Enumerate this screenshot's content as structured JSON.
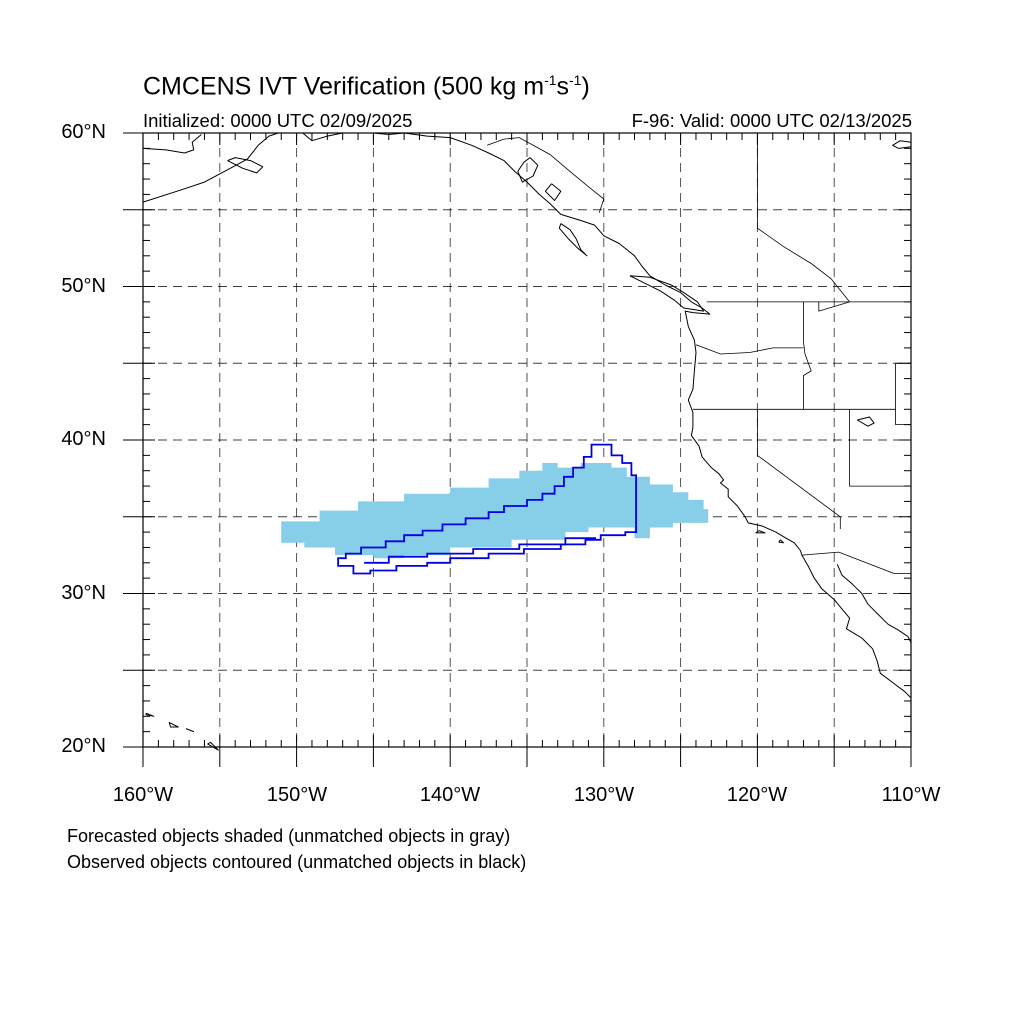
{
  "title": {
    "main": "CMCENS IVT Verification (500 kg m",
    "exp1": "-1",
    "unit_mid": "s",
    "exp2": "-1",
    "close": ")"
  },
  "initialized": "Initialized: 0000 UTC 02/09/2025",
  "valid": "F-96: Valid: 0000 UTC 02/13/2025",
  "latitude_labels": [
    "60°N",
    "50°N",
    "40°N",
    "30°N",
    "20°N"
  ],
  "longitude_labels": [
    "160°W",
    "150°W",
    "140°W",
    "130°W",
    "120°W",
    "110°W"
  ],
  "captions": [
    "Forecasted objects shaded (unmatched objects in gray)",
    "Observed objects contoured (unmatched objects in black)"
  ],
  "colors": {
    "forecast_fill": "#87cee8",
    "observed_contour": "#0000e6",
    "coastline": "#000000",
    "grid": "#000000"
  },
  "extent": {
    "lon": [
      -160,
      -110
    ],
    "lat": [
      20,
      60
    ]
  },
  "forecast_object_lonlat": [
    [
      -151,
      33.3
    ],
    [
      -151,
      34.7
    ],
    [
      -148.5,
      34.7
    ],
    [
      -148.5,
      35.4
    ],
    [
      -146,
      35.4
    ],
    [
      -146,
      36.0
    ],
    [
      -143,
      36.0
    ],
    [
      -143,
      36.5
    ],
    [
      -140,
      36.5
    ],
    [
      -140,
      36.9
    ],
    [
      -137.5,
      36.9
    ],
    [
      -137.5,
      37.5
    ],
    [
      -135.5,
      37.5
    ],
    [
      -135.5,
      38.0
    ],
    [
      -134,
      38.0
    ],
    [
      -134,
      38.5
    ],
    [
      -133,
      38.5
    ],
    [
      -133,
      38.2
    ],
    [
      -131.5,
      38.2
    ],
    [
      -131.5,
      38.5
    ],
    [
      -129.5,
      38.5
    ],
    [
      -129.5,
      38.2
    ],
    [
      -128.5,
      38.2
    ],
    [
      -128.5,
      37.6
    ],
    [
      -127,
      37.6
    ],
    [
      -127,
      37.1
    ],
    [
      -125.5,
      37.1
    ],
    [
      -125.5,
      36.6
    ],
    [
      -124.5,
      36.6
    ],
    [
      -124.5,
      36.1
    ],
    [
      -123.5,
      36.1
    ],
    [
      -123.5,
      35.5
    ],
    [
      -123.2,
      35.5
    ],
    [
      -123.2,
      34.6
    ],
    [
      -125.5,
      34.6
    ],
    [
      -125.5,
      34.3
    ],
    [
      -127,
      34.3
    ],
    [
      -127,
      33.6
    ],
    [
      -128,
      33.6
    ],
    [
      -128,
      34.3
    ],
    [
      -131,
      34.3
    ],
    [
      -131,
      34.0
    ],
    [
      -132.5,
      34.0
    ],
    [
      -132.5,
      33.5
    ],
    [
      -136,
      33.5
    ],
    [
      -136,
      33.0
    ],
    [
      -140,
      33.0
    ],
    [
      -140,
      32.5
    ],
    [
      -143,
      32.5
    ],
    [
      -143,
      32.3
    ],
    [
      -145,
      32.3
    ],
    [
      -145,
      32.5
    ],
    [
      -147.5,
      32.5
    ],
    [
      -147.5,
      33.0
    ],
    [
      -149.5,
      33.0
    ],
    [
      -149.5,
      33.3
    ]
  ],
  "observed_object_lonlat": [
    [
      -147.3,
      32.0
    ],
    [
      -147.3,
      32.3
    ],
    [
      -146.8,
      32.3
    ],
    [
      -146.8,
      32.6
    ],
    [
      -145.8,
      32.6
    ],
    [
      -145.8,
      33.0
    ],
    [
      -144.2,
      33.0
    ],
    [
      -144.2,
      33.4
    ],
    [
      -143.0,
      33.4
    ],
    [
      -143.0,
      33.8
    ],
    [
      -141.8,
      33.8
    ],
    [
      -141.8,
      34.1
    ],
    [
      -140.5,
      34.1
    ],
    [
      -140.5,
      34.5
    ],
    [
      -139.0,
      34.5
    ],
    [
      -139.0,
      34.9
    ],
    [
      -137.5,
      34.9
    ],
    [
      -137.5,
      35.3
    ],
    [
      -136.5,
      35.3
    ],
    [
      -136.5,
      35.7
    ],
    [
      -135.0,
      35.7
    ],
    [
      -135.0,
      36.1
    ],
    [
      -134.0,
      36.1
    ],
    [
      -134.0,
      36.5
    ],
    [
      -133.2,
      36.5
    ],
    [
      -133.2,
      37.0
    ],
    [
      -132.6,
      37.0
    ],
    [
      -132.6,
      37.6
    ],
    [
      -132.0,
      37.6
    ],
    [
      -132.0,
      38.2
    ],
    [
      -131.3,
      38.2
    ],
    [
      -131.3,
      38.9
    ],
    [
      -130.8,
      38.9
    ],
    [
      -130.8,
      39.7
    ],
    [
      -129.5,
      39.7
    ],
    [
      -129.5,
      39.0
    ],
    [
      -128.8,
      39.0
    ],
    [
      -128.8,
      38.5
    ],
    [
      -128.2,
      38.5
    ],
    [
      -128.2,
      37.7
    ],
    [
      -127.9,
      37.7
    ],
    [
      -127.9,
      34.0
    ],
    [
      -128.6,
      34.0
    ],
    [
      -128.6,
      33.8
    ],
    [
      -130.2,
      33.8
    ],
    [
      -130.2,
      33.5
    ],
    [
      -131.2,
      33.5
    ],
    [
      -131.2,
      33.2
    ],
    [
      -132.8,
      33.2
    ],
    [
      -132.8,
      32.9
    ],
    [
      -135.2,
      32.9
    ],
    [
      -135.2,
      32.6
    ],
    [
      -137.5,
      32.6
    ],
    [
      -137.5,
      32.3
    ],
    [
      -140.0,
      32.3
    ],
    [
      -140.0,
      32.0
    ],
    [
      -141.5,
      32.0
    ],
    [
      -141.5,
      31.8
    ],
    [
      -143.5,
      31.8
    ],
    [
      -143.5,
      31.5
    ],
    [
      -145.2,
      31.5
    ],
    [
      -145.2,
      31.3
    ],
    [
      -146.3,
      31.3
    ],
    [
      -146.3,
      31.8
    ],
    [
      -147.3,
      31.8
    ]
  ],
  "observed_inner_edge_lonlat": [
    [
      -145.6,
      32.0
    ],
    [
      -144.0,
      32.0
    ],
    [
      -144.0,
      32.4
    ],
    [
      -141.5,
      32.4
    ],
    [
      -141.5,
      32.6
    ],
    [
      -138.5,
      32.6
    ],
    [
      -138.5,
      32.9
    ],
    [
      -135.5,
      32.9
    ],
    [
      -135.5,
      33.2
    ],
    [
      -132.5,
      33.2
    ],
    [
      -132.5,
      33.6
    ],
    [
      -130.5,
      33.6
    ]
  ],
  "coastlines_lonlat": [
    [
      [
        -160,
        55.5
      ],
      [
        -157.5,
        56.3
      ],
      [
        -156,
        56.8
      ],
      [
        -154.5,
        57.6
      ],
      [
        -153.2,
        58.3
      ],
      [
        -152.5,
        59.2
      ],
      [
        -151.8,
        59.8
      ],
      [
        -151.2,
        60
      ]
    ],
    [
      [
        -160,
        59.0
      ],
      [
        -158.5,
        58.9
      ],
      [
        -157.3,
        58.7
      ],
      [
        -156.7,
        58.9
      ],
      [
        -156.8,
        59.4
      ],
      [
        -156.2,
        59.9
      ]
    ],
    [
      [
        -154.5,
        58.2
      ],
      [
        -153.5,
        57.7
      ],
      [
        -152.6,
        57.4
      ],
      [
        -152.2,
        57.8
      ],
      [
        -153.0,
        58.2
      ],
      [
        -154.0,
        58.4
      ],
      [
        -154.5,
        58.2
      ]
    ],
    [
      [
        -149.6,
        60
      ],
      [
        -149.0,
        59.5
      ],
      [
        -148.0,
        59.8
      ],
      [
        -147.0,
        60
      ],
      [
        -145.0,
        60
      ],
      [
        -144.0,
        59.9
      ],
      [
        -143.0,
        60
      ],
      [
        -141.5,
        59.8
      ],
      [
        -140.0,
        59.7
      ],
      [
        -138.6,
        59.2
      ],
      [
        -137.5,
        58.7
      ],
      [
        -136.5,
        58.2
      ],
      [
        -135.8,
        57.5
      ],
      [
        -135.0,
        56.8
      ],
      [
        -134.2,
        56.0
      ],
      [
        -133.5,
        55.4
      ],
      [
        -132.8,
        54.7
      ],
      [
        -131.5,
        54.3
      ],
      [
        -130.6,
        54.0
      ],
      [
        -130.0,
        53.3
      ],
      [
        -129.0,
        52.8
      ],
      [
        -128.0,
        52.0
      ],
      [
        -127.5,
        51.3
      ],
      [
        -127.0,
        50.7
      ],
      [
        -126.0,
        50.1
      ],
      [
        -125.0,
        49.6
      ],
      [
        -124.3,
        49.0
      ],
      [
        -123.6,
        48.6
      ],
      [
        -123.1,
        48.2
      ],
      [
        -124.2,
        48.3
      ],
      [
        -124.7,
        48.4
      ],
      [
        -124.5,
        47.4
      ],
      [
        -124.1,
        46.5
      ],
      [
        -124.0,
        45.7
      ],
      [
        -124.1,
        44.5
      ],
      [
        -124.2,
        43.3
      ],
      [
        -124.5,
        42.6
      ],
      [
        -124.2,
        41.8
      ],
      [
        -124.2,
        40.8
      ],
      [
        -124.3,
        40.3
      ],
      [
        -123.8,
        39.6
      ],
      [
        -123.6,
        38.9
      ],
      [
        -123.0,
        38.2
      ],
      [
        -122.5,
        37.8
      ],
      [
        -122.2,
        37.4
      ],
      [
        -122.4,
        37.2
      ],
      [
        -121.9,
        36.8
      ],
      [
        -121.9,
        36.3
      ],
      [
        -121.3,
        35.7
      ],
      [
        -120.8,
        35.0
      ],
      [
        -120.6,
        34.6
      ],
      [
        -119.7,
        34.4
      ],
      [
        -118.8,
        34.0
      ],
      [
        -118.3,
        33.7
      ],
      [
        -117.6,
        33.3
      ],
      [
        -117.2,
        32.8
      ],
      [
        -117.1,
        32.5
      ],
      [
        -116.7,
        31.8
      ],
      [
        -116.3,
        31.0
      ],
      [
        -115.8,
        30.3
      ],
      [
        -115.0,
        29.6
      ],
      [
        -114.5,
        29.0
      ],
      [
        -114.0,
        28.4
      ],
      [
        -114.2,
        27.7
      ],
      [
        -113.2,
        27.1
      ],
      [
        -112.5,
        26.4
      ],
      [
        -112.2,
        25.6
      ],
      [
        -112.0,
        24.8
      ],
      [
        -111.2,
        24.2
      ],
      [
        -110.4,
        23.6
      ],
      [
        -110,
        23.2
      ]
    ],
    [
      [
        -134.8,
        58.4
      ],
      [
        -134.3,
        57.9
      ],
      [
        -134.6,
        57.2
      ],
      [
        -135.3,
        56.8
      ],
      [
        -135.6,
        57.5
      ],
      [
        -135.2,
        58.1
      ],
      [
        -134.8,
        58.4
      ]
    ],
    [
      [
        -133.4,
        56.7
      ],
      [
        -132.8,
        56.2
      ],
      [
        -133.2,
        55.6
      ],
      [
        -133.8,
        56.2
      ],
      [
        -133.4,
        56.7
      ]
    ],
    [
      [
        -132.8,
        54.1
      ],
      [
        -132.2,
        53.7
      ],
      [
        -131.8,
        53.1
      ],
      [
        -131.5,
        52.4
      ],
      [
        -131.1,
        52.0
      ],
      [
        -131.7,
        52.5
      ],
      [
        -132.3,
        53.1
      ],
      [
        -132.9,
        53.8
      ],
      [
        -132.8,
        54.1
      ]
    ],
    [
      [
        -128.3,
        50.7
      ],
      [
        -127.5,
        50.3
      ],
      [
        -126.3,
        49.7
      ],
      [
        -125.4,
        49.1
      ],
      [
        -124.8,
        48.6
      ],
      [
        -123.5,
        48.4
      ],
      [
        -123.9,
        49.0
      ],
      [
        -124.8,
        49.6
      ],
      [
        -125.6,
        50.1
      ],
      [
        -127.0,
        50.6
      ],
      [
        -128.3,
        50.7
      ]
    ],
    [
      [
        -114.8,
        31.9
      ],
      [
        -114.5,
        31.2
      ],
      [
        -113.8,
        30.6
      ],
      [
        -113.2,
        30.0
      ],
      [
        -112.8,
        29.3
      ],
      [
        -112.2,
        28.7
      ],
      [
        -111.5,
        28.0
      ],
      [
        -110.8,
        27.6
      ],
      [
        -110.2,
        27.2
      ],
      [
        -110,
        26.8
      ]
    ],
    [
      [
        -110,
        59.1
      ],
      [
        -110.8,
        59.0
      ],
      [
        -111.2,
        59.2
      ],
      [
        -110.7,
        59.5
      ],
      [
        -110,
        59.4
      ]
    ],
    [
      [
        -118.5,
        33.5
      ],
      [
        -118.3,
        33.3
      ],
      [
        -118.6,
        33.35
      ],
      [
        -118.5,
        33.5
      ]
    ],
    [
      [
        -119.9,
        34.1
      ],
      [
        -119.5,
        33.95
      ],
      [
        -120.1,
        33.95
      ],
      [
        -119.9,
        34.1
      ]
    ],
    [
      [
        -113.5,
        41.3
      ],
      [
        -112.8,
        40.9
      ],
      [
        -112.4,
        41.1
      ],
      [
        -112.7,
        41.5
      ],
      [
        -113.5,
        41.3
      ]
    ],
    [
      [
        -155.8,
        20.2
      ],
      [
        -155.1,
        19.8
      ],
      [
        -155.6,
        20.3
      ],
      [
        -155.8,
        20.2
      ]
    ],
    [
      [
        -157.2,
        21.2
      ],
      [
        -156.7,
        21.0
      ],
      [
        -157.2,
        21.2
      ]
    ],
    [
      [
        -158.3,
        21.6
      ],
      [
        -157.7,
        21.3
      ],
      [
        -158.2,
        21.3
      ],
      [
        -158.3,
        21.6
      ]
    ],
    [
      [
        -159.8,
        22.2
      ],
      [
        -159.3,
        22.0
      ],
      [
        -159.8,
        22.1
      ],
      [
        -159.8,
        22.2
      ]
    ]
  ],
  "borders_lonlat": [
    [
      [
        -141,
        60
      ],
      [
        -141,
        59.8
      ]
    ],
    [
      [
        -137.6,
        59.2
      ],
      [
        -136.5,
        59.6
      ],
      [
        -135.5,
        59.7
      ],
      [
        -133.5,
        58.6
      ],
      [
        -132.2,
        57.5
      ],
      [
        -131.0,
        56.5
      ],
      [
        -130.0,
        55.7
      ],
      [
        -130.3,
        54.8
      ]
    ],
    [
      [
        -123.3,
        49.0
      ],
      [
        -110,
        49.0
      ]
    ],
    [
      [
        -120.0,
        60
      ],
      [
        -120.0,
        53.8
      ],
      [
        -118.3,
        52.6
      ],
      [
        -116.5,
        51.5
      ],
      [
        -115.2,
        50.5
      ],
      [
        -114.0,
        49.0
      ]
    ],
    [
      [
        -117.0,
        49.0
      ],
      [
        -117.0,
        46.4
      ],
      [
        -116.9,
        45.6
      ],
      [
        -116.5,
        44.5
      ],
      [
        -117.0,
        44.2
      ],
      [
        -117.0,
        42.0
      ]
    ],
    [
      [
        -124.0,
        46.2
      ],
      [
        -122.4,
        45.6
      ],
      [
        -120.5,
        45.7
      ],
      [
        -119.0,
        46.0
      ],
      [
        -117.0,
        46.0
      ]
    ],
    [
      [
        -124.2,
        42.0
      ],
      [
        -111.0,
        42.0
      ]
    ],
    [
      [
        -120.0,
        42.0
      ],
      [
        -120.0,
        39.0
      ],
      [
        -114.6,
        35.0
      ],
      [
        -114.6,
        34.2
      ]
    ],
    [
      [
        -114.0,
        42.0
      ],
      [
        -114.0,
        37.0
      ],
      [
        -110,
        37.0
      ]
    ],
    [
      [
        -111.0,
        45.0
      ],
      [
        -110,
        45.0
      ]
    ],
    [
      [
        -111.0,
        45.0
      ],
      [
        -111.0,
        41.0
      ],
      [
        -110,
        41.0
      ]
    ],
    [
      [
        -114.0,
        49.0
      ],
      [
        -116.0,
        48.4
      ],
      [
        -116.0,
        49.0
      ]
    ],
    [
      [
        -117.1,
        32.5
      ],
      [
        -114.7,
        32.7
      ],
      [
        -111.1,
        31.3
      ],
      [
        -110,
        31.3
      ]
    ]
  ]
}
